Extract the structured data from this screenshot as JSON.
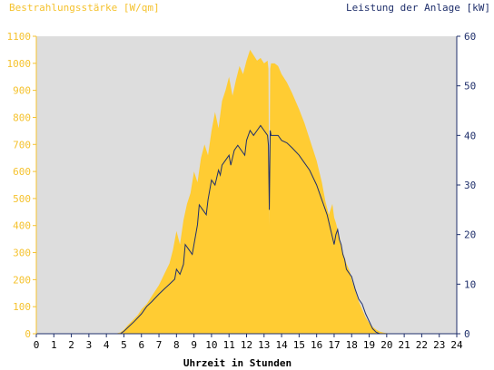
{
  "chart_data": {
    "type": "area",
    "title_left": "Bestrahlungsstärke [W/qm]",
    "title_right": "Leistung der Anlage [kW]",
    "xlabel": "Uhrzeit in Stunden",
    "xlim": [
      0,
      24
    ],
    "x_ticks": [
      0,
      1,
      2,
      3,
      4,
      5,
      6,
      7,
      8,
      9,
      10,
      11,
      12,
      13,
      14,
      15,
      16,
      17,
      18,
      19,
      20,
      21,
      22,
      23,
      24
    ],
    "y_left": {
      "lim": [
        0,
        1100
      ],
      "ticks": [
        0,
        100,
        200,
        300,
        400,
        500,
        600,
        700,
        800,
        900,
        1000,
        1100
      ],
      "color": "#f5c22e"
    },
    "y_right": {
      "lim": [
        0,
        60
      ],
      "ticks": [
        0,
        10,
        20,
        30,
        40,
        50,
        60
      ],
      "color": "#1f2f6b"
    },
    "plot_background": "#dddddd",
    "grid": false,
    "series": [
      {
        "axis": "left",
        "render": "area",
        "color": "#ffcc33",
        "x": [
          0,
          4.5,
          4.8,
          5.0,
          5.2,
          5.5,
          5.8,
          6.0,
          6.3,
          6.6,
          7.0,
          7.3,
          7.6,
          7.8,
          8.0,
          8.2,
          8.4,
          8.6,
          8.8,
          9.0,
          9.2,
          9.4,
          9.6,
          9.8,
          10.0,
          10.2,
          10.4,
          10.6,
          10.8,
          11.0,
          11.2,
          11.4,
          11.6,
          11.8,
          12.0,
          12.2,
          12.4,
          12.6,
          12.8,
          13.0,
          13.2,
          13.25,
          13.3,
          13.35,
          13.4,
          13.6,
          13.8,
          14.0,
          14.3,
          14.6,
          15.0,
          15.3,
          15.6,
          16.0,
          16.3,
          16.5,
          16.7,
          16.9,
          17.0,
          17.1,
          17.3,
          17.5,
          17.7,
          17.9,
          18.0,
          18.2,
          18.4,
          18.6,
          18.8,
          19.0,
          19.2,
          19.4,
          19.6,
          19.8,
          20.0,
          20.2,
          20.4,
          20.6,
          24
        ],
        "values": [
          0,
          0,
          5,
          15,
          30,
          50,
          70,
          90,
          110,
          140,
          180,
          220,
          260,
          310,
          380,
          330,
          420,
          480,
          520,
          600,
          560,
          650,
          700,
          660,
          750,
          820,
          760,
          860,
          900,
          950,
          880,
          940,
          990,
          960,
          1010,
          1050,
          1030,
          1010,
          1020,
          1000,
          1010,
          980,
          400,
          980,
          1000,
          1000,
          990,
          960,
          930,
          890,
          830,
          780,
          720,
          640,
          560,
          490,
          440,
          480,
          430,
          410,
          360,
          300,
          260,
          230,
          200,
          160,
          120,
          90,
          60,
          40,
          25,
          15,
          8,
          4,
          2,
          1,
          0,
          0,
          0
        ]
      },
      {
        "axis": "right",
        "render": "line",
        "color": "#1f2f6b",
        "x": [
          0,
          4.8,
          5.0,
          5.3,
          5.6,
          6.0,
          6.3,
          6.6,
          7.0,
          7.3,
          7.6,
          7.9,
          8.0,
          8.2,
          8.4,
          8.5,
          8.7,
          8.9,
          9.0,
          9.2,
          9.3,
          9.5,
          9.7,
          9.8,
          10.0,
          10.2,
          10.4,
          10.5,
          10.6,
          10.8,
          11.0,
          11.1,
          11.3,
          11.5,
          11.7,
          11.9,
          12.0,
          12.2,
          12.4,
          12.6,
          12.8,
          13.0,
          13.2,
          13.25,
          13.3,
          13.35,
          13.4,
          13.6,
          13.8,
          14.0,
          14.3,
          14.6,
          15.0,
          15.3,
          15.6,
          16.0,
          16.3,
          16.6,
          16.8,
          17.0,
          17.1,
          17.2,
          17.3,
          17.4,
          17.5,
          17.6,
          17.7,
          17.8,
          18.0,
          18.2,
          18.4,
          18.6,
          18.8,
          19.0,
          19.2,
          19.4,
          19.6,
          20.0,
          24
        ],
        "values": [
          0,
          0,
          0.5,
          1.5,
          2.5,
          4,
          5.5,
          6.5,
          8,
          9,
          10,
          11,
          13,
          12,
          14,
          18,
          17,
          16,
          18,
          22,
          26,
          25,
          24,
          27,
          31,
          30,
          33,
          32,
          34,
          35,
          36,
          34,
          37,
          38,
          37,
          36,
          39,
          41,
          40,
          41,
          42,
          41,
          40,
          38,
          25,
          41,
          40,
          40,
          40,
          39,
          38.5,
          37.5,
          36,
          34.5,
          33,
          30,
          27,
          24,
          21,
          18,
          20,
          21,
          19,
          18,
          16,
          15,
          13,
          12.5,
          11.5,
          9,
          7,
          6,
          4,
          2.5,
          1,
          0.3,
          0,
          0,
          0
        ]
      }
    ]
  }
}
